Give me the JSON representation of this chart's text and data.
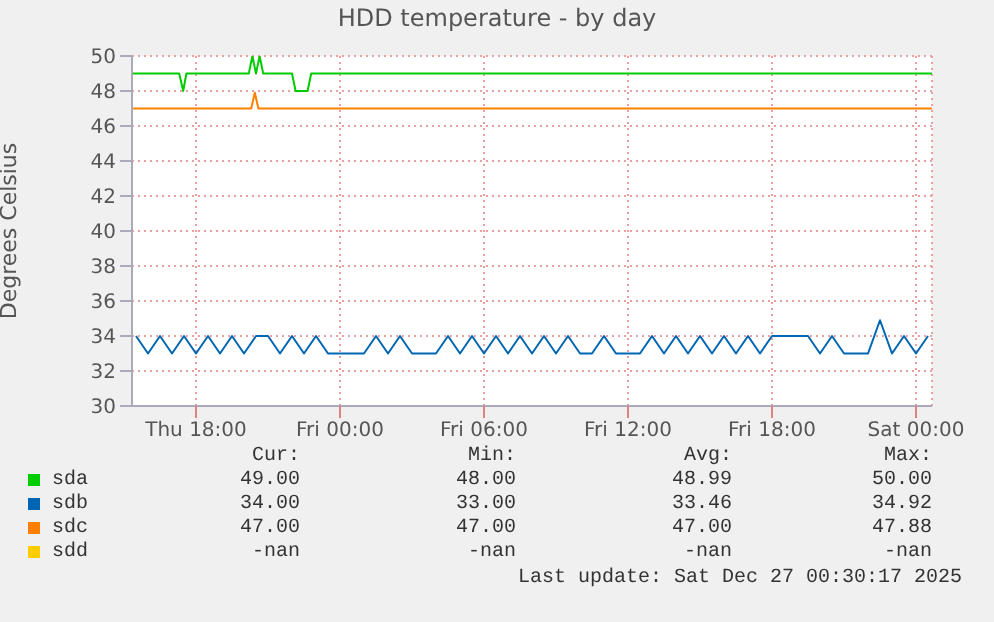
{
  "chart_data": {
    "type": "line",
    "title": "HDD temperature - by day",
    "ylabel": "Degrees Celsius",
    "xlim": [
      "2025-12-25T15:20",
      "2025-12-27T00:40"
    ],
    "xticks": [
      {
        "value": "2025-12-25T18:00",
        "label": "Thu 18:00"
      },
      {
        "value": "2025-12-26T00:00",
        "label": "Fri 00:00"
      },
      {
        "value": "2025-12-26T06:00",
        "label": "Fri 06:00"
      },
      {
        "value": "2025-12-26T12:00",
        "label": "Fri 12:00"
      },
      {
        "value": "2025-12-26T18:00",
        "label": "Fri 18:00"
      },
      {
        "value": "2025-12-27T00:00",
        "label": "Sat 00:00"
      }
    ],
    "ylim": [
      30,
      50
    ],
    "yticks": [
      30,
      32,
      34,
      36,
      38,
      40,
      42,
      44,
      46,
      48,
      50
    ],
    "grid": true,
    "legend": "bottom left",
    "marker": "none",
    "line_style": "solid",
    "series": [
      {
        "name": "sda",
        "color": "#00cc00",
        "x": [
          "2025-12-25T15:20",
          "2025-12-25T17:18",
          "2025-12-25T17:28",
          "2025-12-25T17:36",
          "2025-12-25T20:12",
          "2025-12-25T20:21",
          "2025-12-25T20:30",
          "2025-12-25T20:39",
          "2025-12-25T20:48",
          "2025-12-25T22:00",
          "2025-12-25T22:09",
          "2025-12-25T22:39",
          "2025-12-25T22:48",
          "2025-12-27T00:40"
        ],
        "values": [
          49,
          49,
          48,
          49,
          49,
          50,
          49,
          50,
          49,
          49,
          48,
          48,
          49,
          49
        ]
      },
      {
        "name": "sdb",
        "color": "#0066b3",
        "x": [
          "2025-12-25T15:30",
          "2025-12-25T16:00",
          "2025-12-25T16:30",
          "2025-12-25T17:00",
          "2025-12-25T17:30",
          "2025-12-25T18:00",
          "2025-12-25T18:30",
          "2025-12-25T19:00",
          "2025-12-25T19:30",
          "2025-12-25T20:00",
          "2025-12-25T20:30",
          "2025-12-25T21:00",
          "2025-12-25T21:30",
          "2025-12-25T22:00",
          "2025-12-25T22:30",
          "2025-12-25T23:00",
          "2025-12-25T23:30",
          "2025-12-26T00:00",
          "2025-12-26T00:30",
          "2025-12-26T01:00",
          "2025-12-26T01:30",
          "2025-12-26T02:00",
          "2025-12-26T02:30",
          "2025-12-26T03:00",
          "2025-12-26T03:30",
          "2025-12-26T04:00",
          "2025-12-26T04:30",
          "2025-12-26T05:00",
          "2025-12-26T05:30",
          "2025-12-26T06:00",
          "2025-12-26T06:30",
          "2025-12-26T07:00",
          "2025-12-26T07:30",
          "2025-12-26T08:00",
          "2025-12-26T08:30",
          "2025-12-26T09:00",
          "2025-12-26T09:30",
          "2025-12-26T10:00",
          "2025-12-26T10:30",
          "2025-12-26T11:00",
          "2025-12-26T11:30",
          "2025-12-26T12:00",
          "2025-12-26T12:30",
          "2025-12-26T13:00",
          "2025-12-26T13:30",
          "2025-12-26T14:00",
          "2025-12-26T14:30",
          "2025-12-26T15:00",
          "2025-12-26T15:30",
          "2025-12-26T16:00",
          "2025-12-26T16:30",
          "2025-12-26T17:00",
          "2025-12-26T17:30",
          "2025-12-26T18:00",
          "2025-12-26T18:30",
          "2025-12-26T19:00",
          "2025-12-26T19:30",
          "2025-12-26T20:00",
          "2025-12-26T20:30",
          "2025-12-26T21:00",
          "2025-12-26T21:30",
          "2025-12-26T22:00",
          "2025-12-26T22:30",
          "2025-12-26T23:00",
          "2025-12-26T23:30",
          "2025-12-27T00:00",
          "2025-12-27T00:30"
        ],
        "values": [
          34,
          33,
          34,
          33,
          34,
          33,
          34,
          33,
          34,
          33,
          34,
          34,
          33,
          34,
          33,
          34,
          33,
          33,
          33,
          33,
          34,
          33,
          34,
          33,
          33,
          33,
          34,
          33,
          34,
          33,
          34,
          33,
          34,
          33,
          34,
          33,
          34,
          33,
          33,
          34,
          33,
          33,
          33,
          34,
          33,
          34,
          33,
          34,
          33,
          34,
          33,
          34,
          33,
          34,
          34,
          34,
          34,
          33,
          34,
          33,
          33,
          33,
          34.9,
          33,
          34,
          33,
          34
        ]
      },
      {
        "name": "sdc",
        "color": "#ff8000",
        "x": [
          "2025-12-25T15:20",
          "2025-12-25T20:18",
          "2025-12-25T20:27",
          "2025-12-25T20:36",
          "2025-12-27T00:40"
        ],
        "values": [
          47,
          47,
          47.9,
          47,
          47
        ]
      },
      {
        "name": "sdd",
        "color": "#ffcc00"
      }
    ],
    "annotations": [
      "Cur:",
      "Min:",
      "Avg:",
      "Max:",
      "49.00",
      "48.00",
      "48.99",
      "50.00",
      "34.00",
      "33.00",
      "33.46",
      "34.92",
      "47.00",
      "47.00",
      "47.00",
      "47.88",
      "-nan",
      "-nan",
      "-nan",
      "-nan",
      "Last update: Sat Dec 27 00:30:17 2025"
    ]
  }
}
